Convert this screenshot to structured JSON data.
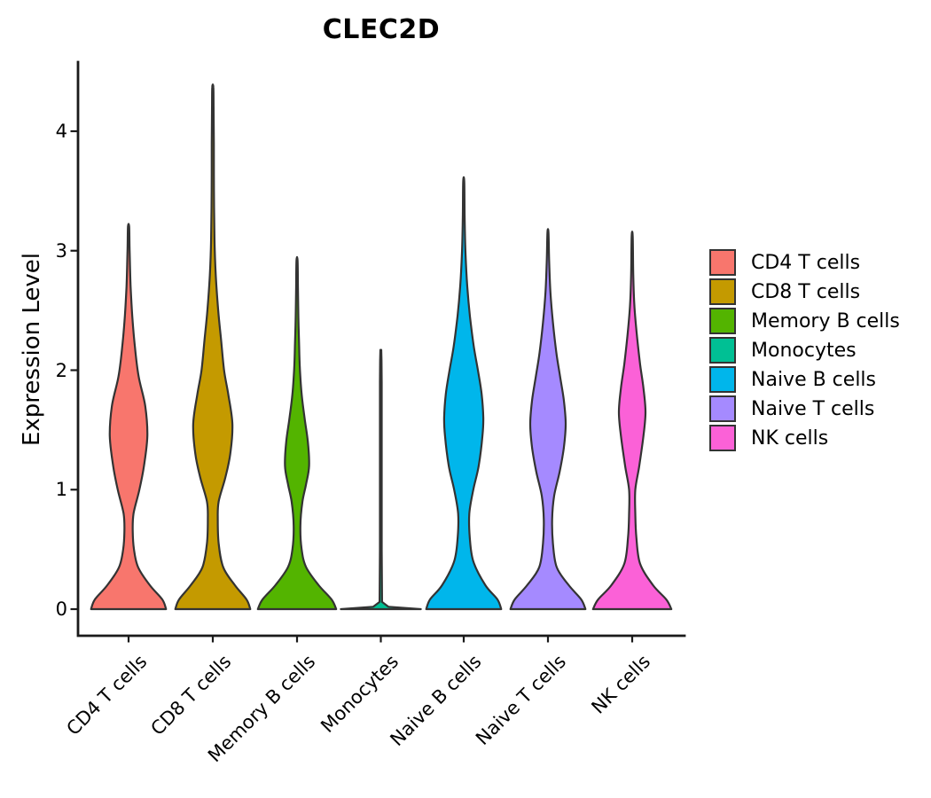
{
  "chart_data": {
    "type": "violin",
    "title": "CLEC2D",
    "ylabel": "Expression Level",
    "ylim": [
      0,
      4.5
    ],
    "yticks": [
      0,
      1,
      2,
      3,
      4
    ],
    "grid": false,
    "legend_position": "right",
    "background": "#ffffff",
    "axis_color": "#1a1a1a",
    "violin_outline_color": "#333333",
    "categories": [
      "CD4 T cells",
      "CD8 T cells",
      "Memory B cells",
      "Monocytes",
      "Naive B cells",
      "Naive T cells",
      "NK cells"
    ],
    "series": [
      {
        "name": "CD4 T cells",
        "color": "#F8766D",
        "max_expression": 3.2,
        "smooth": true,
        "profile": [
          [
            0,
            0.9
          ],
          [
            0.08,
            0.81
          ],
          [
            0.2,
            0.51
          ],
          [
            0.35,
            0.23
          ],
          [
            0.5,
            0.13
          ],
          [
            0.65,
            0.1
          ],
          [
            0.8,
            0.12
          ],
          [
            1.0,
            0.26
          ],
          [
            1.2,
            0.37
          ],
          [
            1.45,
            0.45
          ],
          [
            1.7,
            0.4
          ],
          [
            1.95,
            0.24
          ],
          [
            2.2,
            0.15
          ],
          [
            2.45,
            0.09
          ],
          [
            2.7,
            0.05
          ],
          [
            3.0,
            0.025
          ],
          [
            3.2,
            0.014
          ]
        ]
      },
      {
        "name": "CD8 T cells",
        "color": "#C49A00",
        "max_expression": 4.37,
        "smooth": true,
        "profile": [
          [
            0,
            0.9
          ],
          [
            0.08,
            0.81
          ],
          [
            0.2,
            0.53
          ],
          [
            0.35,
            0.25
          ],
          [
            0.55,
            0.14
          ],
          [
            0.75,
            0.12
          ],
          [
            0.9,
            0.14
          ],
          [
            1.1,
            0.3
          ],
          [
            1.3,
            0.42
          ],
          [
            1.55,
            0.47
          ],
          [
            1.8,
            0.37
          ],
          [
            2.0,
            0.27
          ],
          [
            2.25,
            0.2
          ],
          [
            2.5,
            0.13
          ],
          [
            2.8,
            0.07
          ],
          [
            3.1,
            0.04
          ],
          [
            3.5,
            0.028
          ],
          [
            3.9,
            0.025
          ],
          [
            4.2,
            0.02
          ],
          [
            4.37,
            0.013
          ]
        ]
      },
      {
        "name": "Memory B cells",
        "color": "#53B400",
        "max_expression": 2.92,
        "smooth": true,
        "profile": [
          [
            0,
            0.94
          ],
          [
            0.08,
            0.83
          ],
          [
            0.2,
            0.52
          ],
          [
            0.35,
            0.22
          ],
          [
            0.5,
            0.11
          ],
          [
            0.7,
            0.08
          ],
          [
            0.9,
            0.13
          ],
          [
            1.05,
            0.22
          ],
          [
            1.2,
            0.29
          ],
          [
            1.4,
            0.26
          ],
          [
            1.6,
            0.18
          ],
          [
            1.8,
            0.11
          ],
          [
            2.0,
            0.07
          ],
          [
            2.2,
            0.05
          ],
          [
            2.45,
            0.032
          ],
          [
            2.7,
            0.022
          ],
          [
            2.92,
            0.013
          ]
        ]
      },
      {
        "name": "Monocytes",
        "color": "#00C094",
        "max_expression": 2.17,
        "smooth": false,
        "profile": [
          [
            0,
            0.96
          ],
          [
            0.02,
            0.18
          ],
          [
            0.06,
            0.03
          ],
          [
            0.5,
            0.022
          ],
          [
            1.2,
            0.022
          ],
          [
            1.9,
            0.022
          ],
          [
            2.08,
            0.018
          ],
          [
            2.17,
            0.01
          ]
        ]
      },
      {
        "name": "Naive B cells",
        "color": "#00B6EB",
        "max_expression": 3.58,
        "smooth": true,
        "profile": [
          [
            0,
            0.9
          ],
          [
            0.08,
            0.81
          ],
          [
            0.2,
            0.52
          ],
          [
            0.4,
            0.23
          ],
          [
            0.6,
            0.145
          ],
          [
            0.8,
            0.135
          ],
          [
            1.0,
            0.23
          ],
          [
            1.2,
            0.36
          ],
          [
            1.45,
            0.45
          ],
          [
            1.6,
            0.47
          ],
          [
            1.8,
            0.43
          ],
          [
            2.0,
            0.34
          ],
          [
            2.2,
            0.24
          ],
          [
            2.45,
            0.15
          ],
          [
            2.7,
            0.085
          ],
          [
            3.0,
            0.04
          ],
          [
            3.3,
            0.022
          ],
          [
            3.58,
            0.013
          ]
        ]
      },
      {
        "name": "Naive T cells",
        "color": "#A58AFF",
        "max_expression": 3.15,
        "smooth": true,
        "profile": [
          [
            0,
            0.9
          ],
          [
            0.08,
            0.8
          ],
          [
            0.2,
            0.5
          ],
          [
            0.35,
            0.21
          ],
          [
            0.55,
            0.12
          ],
          [
            0.75,
            0.1
          ],
          [
            0.95,
            0.15
          ],
          [
            1.15,
            0.28
          ],
          [
            1.35,
            0.38
          ],
          [
            1.55,
            0.425
          ],
          [
            1.75,
            0.38
          ],
          [
            1.95,
            0.29
          ],
          [
            2.15,
            0.2
          ],
          [
            2.4,
            0.12
          ],
          [
            2.65,
            0.06
          ],
          [
            2.9,
            0.03
          ],
          [
            3.15,
            0.013
          ]
        ]
      },
      {
        "name": "NK cells",
        "color": "#FB61D7",
        "max_expression": 3.12,
        "smooth": true,
        "profile": [
          [
            0,
            0.94
          ],
          [
            0.08,
            0.82
          ],
          [
            0.2,
            0.5
          ],
          [
            0.38,
            0.19
          ],
          [
            0.6,
            0.1
          ],
          [
            0.8,
            0.075
          ],
          [
            1.0,
            0.075
          ],
          [
            1.2,
            0.17
          ],
          [
            1.45,
            0.27
          ],
          [
            1.65,
            0.32
          ],
          [
            1.85,
            0.27
          ],
          [
            2.05,
            0.19
          ],
          [
            2.3,
            0.11
          ],
          [
            2.55,
            0.05
          ],
          [
            2.8,
            0.025
          ],
          [
            3.12,
            0.013
          ]
        ]
      }
    ]
  }
}
